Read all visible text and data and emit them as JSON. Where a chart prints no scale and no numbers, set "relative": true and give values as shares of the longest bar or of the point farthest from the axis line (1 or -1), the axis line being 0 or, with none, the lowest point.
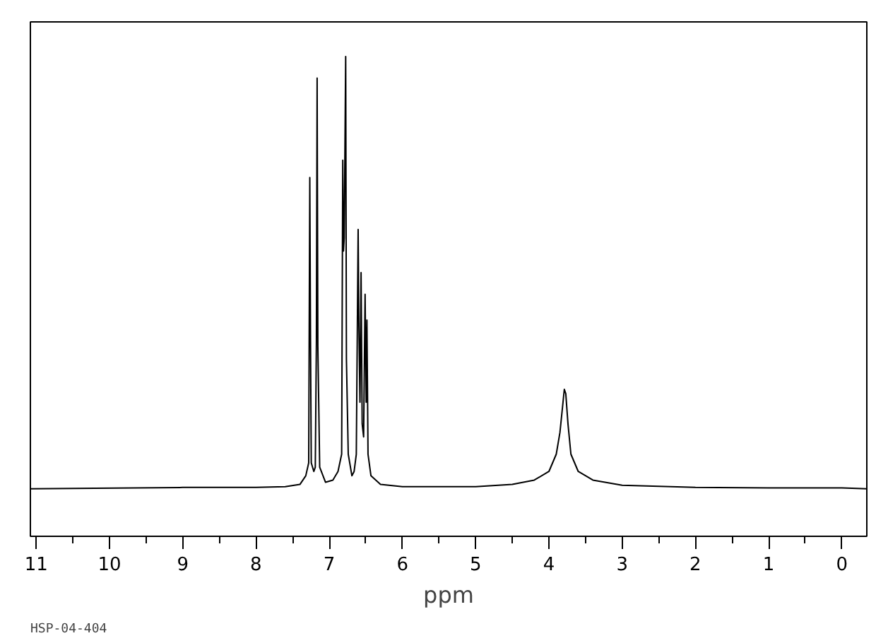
{
  "chart_data": {
    "type": "line",
    "relative": true,
    "xlabel": "ppm",
    "annotations": [
      "HSP-04-404"
    ],
    "grid": false,
    "marker": "none",
    "line_style": "solid",
    "xlim": [
      11.08,
      -0.34
    ],
    "xticks": [
      11,
      10,
      9,
      8,
      7,
      6,
      5,
      4,
      3,
      2,
      1,
      0
    ],
    "series": [
      {
        "color": "#000000",
        "x": [
          11.08,
          9,
          8,
          7.6,
          7.4,
          7.32,
          7.28,
          7.265,
          7.255,
          7.245,
          7.21,
          7.19,
          7.175,
          7.165,
          7.155,
          7.13,
          7.05,
          6.95,
          6.88,
          6.83,
          6.815,
          6.805,
          6.795,
          6.775,
          6.765,
          6.74,
          6.69,
          6.66,
          6.63,
          6.605,
          6.595,
          6.58,
          6.565,
          6.55,
          6.53,
          6.51,
          6.495,
          6.485,
          6.47,
          6.43,
          6.3,
          6.0,
          5.0,
          4.5,
          4.2,
          4.0,
          3.9,
          3.85,
          3.82,
          3.79,
          3.77,
          3.74,
          3.7,
          3.6,
          3.4,
          3.0,
          2.0,
          1,
          0,
          -0.34
        ],
        "values": [
          0,
          0.003,
          0.003,
          0.005,
          0.01,
          0.03,
          0.06,
          0.72,
          0.34,
          0.06,
          0.04,
          0.05,
          0.34,
          0.95,
          0.33,
          0.05,
          0.015,
          0.02,
          0.04,
          0.08,
          0.76,
          0.55,
          0.58,
          1.0,
          0.3,
          0.08,
          0.03,
          0.04,
          0.08,
          0.6,
          0.38,
          0.2,
          0.5,
          0.15,
          0.12,
          0.45,
          0.2,
          0.39,
          0.08,
          0.03,
          0.01,
          0.005,
          0.005,
          0.01,
          0.02,
          0.04,
          0.08,
          0.13,
          0.18,
          0.23,
          0.22,
          0.15,
          0.08,
          0.04,
          0.02,
          0.008,
          0.003,
          0.002,
          0.002,
          0
        ]
      }
    ]
  }
}
